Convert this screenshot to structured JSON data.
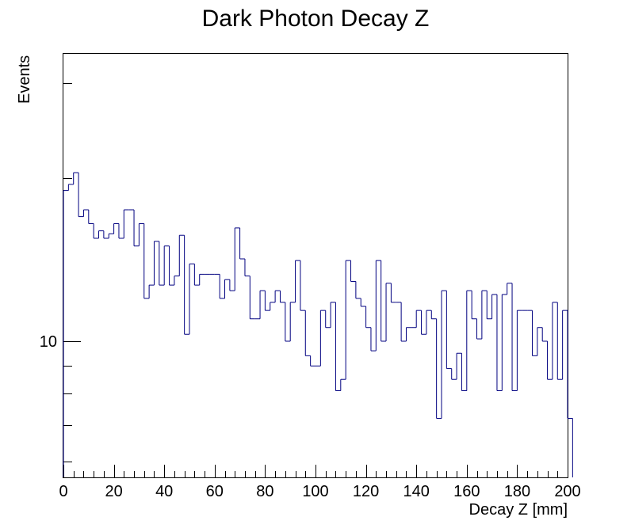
{
  "chart_data": {
    "type": "bar",
    "style": "step-histogram",
    "title": "Dark Photon Decay Z",
    "xlabel": "Decay Z [mm]",
    "ylabel": "Events",
    "xlim": [
      0,
      200
    ],
    "ylim": [
      5.6,
      34.0
    ],
    "yscale": "log",
    "grid": false,
    "bin_width": 2,
    "x_ticks": [
      0,
      20,
      40,
      60,
      80,
      100,
      120,
      140,
      160,
      180,
      200
    ],
    "y_tick_labels": [
      {
        "value": 10,
        "label": "10"
      }
    ],
    "line_color": "#000080",
    "values": [
      19,
      19.5,
      20.5,
      17,
      17.5,
      16.5,
      15.5,
      16,
      15.5,
      15.8,
      16.5,
      15.5,
      17.5,
      17.5,
      15,
      16.5,
      12,
      12.7,
      15.3,
      12.7,
      15,
      12.7,
      13.2,
      15.7,
      10.3,
      13.9,
      12.7,
      13.3,
      13.3,
      13.3,
      13.3,
      12,
      13,
      12.4,
      16.2,
      14.2,
      13.2,
      11,
      11,
      12.4,
      11.4,
      11.8,
      12.4,
      11.8,
      10,
      11.8,
      14.1,
      11.4,
      9.4,
      9,
      9,
      11.4,
      10.6,
      11.8,
      8.1,
      8.5,
      14.1,
      12.9,
      12,
      11.6,
      10.6,
      9.6,
      14.1,
      10,
      12.8,
      11.8,
      11.8,
      10,
      10.6,
      10.6,
      11.4,
      10.3,
      11.4,
      11,
      7.2,
      12.4,
      8.9,
      8.5,
      9.5,
      8.1,
      12.4,
      11,
      10.1,
      12.4,
      11,
      12.2,
      8.1,
      12.2,
      12.8,
      8.1,
      11.4,
      11.4,
      11.4,
      9.4,
      10.6,
      10,
      8.5,
      11.8,
      8.5,
      11.4,
      7.2
    ]
  }
}
